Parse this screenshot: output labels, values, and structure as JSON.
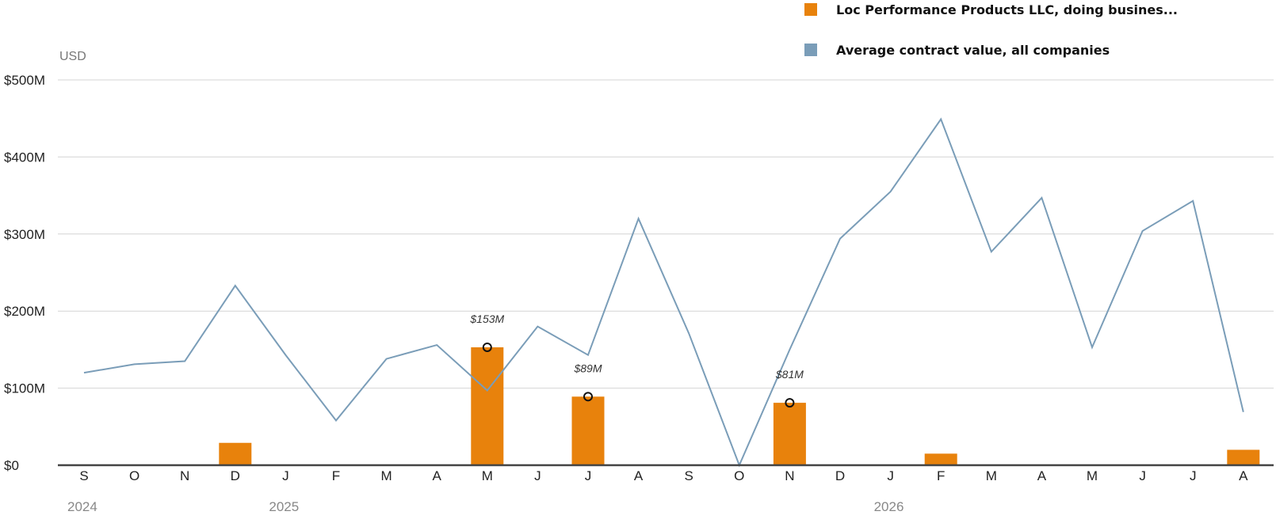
{
  "chart_data": {
    "type": "bar",
    "unit_label": "USD",
    "categories": [
      "S",
      "O",
      "N",
      "D",
      "J",
      "F",
      "M",
      "A",
      "M",
      "J",
      "J",
      "A",
      "S",
      "O",
      "N",
      "D",
      "J",
      "F",
      "M",
      "A",
      "M",
      "J",
      "J",
      "A"
    ],
    "year_labels": [
      {
        "index": 0,
        "label": "2024"
      },
      {
        "index": 4,
        "label": "2025"
      },
      {
        "index": 16,
        "label": "2026"
      }
    ],
    "y_ticks": [
      {
        "value": 0,
        "label": "$0"
      },
      {
        "value": 100,
        "label": "$100M"
      },
      {
        "value": 200,
        "label": "$200M"
      },
      {
        "value": 300,
        "label": "$300M"
      },
      {
        "value": 400,
        "label": "$400M"
      },
      {
        "value": 500,
        "label": "$500M"
      }
    ],
    "ylim": [
      0,
      500
    ],
    "grid": true,
    "legend_position": "top-right",
    "series": [
      {
        "name": "Loc Performance Products LLC, doing busines...",
        "type": "bar",
        "color": "#e8820c",
        "values": [
          0,
          0,
          0,
          29,
          0,
          0,
          0,
          0,
          153,
          0,
          89,
          0,
          0,
          0,
          81,
          0,
          0,
          15,
          0,
          0,
          0,
          0,
          0,
          20
        ]
      },
      {
        "name": "Average contract value, all companies",
        "type": "line",
        "color": "#7a9db8",
        "values": [
          120,
          131,
          135,
          233,
          143,
          58,
          138,
          156,
          97,
          180,
          143,
          320,
          171,
          0,
          150,
          294,
          355,
          449,
          277,
          347,
          153,
          304,
          343,
          69
        ]
      }
    ],
    "annotations": [
      {
        "index": 8,
        "value": 153,
        "label": "$153M"
      },
      {
        "index": 10,
        "value": 89,
        "label": "$89M"
      },
      {
        "index": 14,
        "value": 81,
        "label": "$81M"
      }
    ]
  }
}
